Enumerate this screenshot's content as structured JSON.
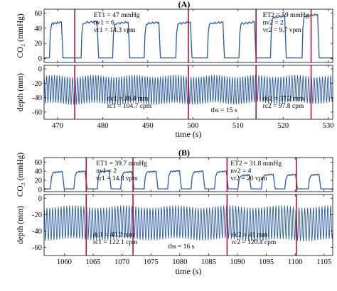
{
  "chart_data": [
    {
      "type": "line",
      "panel_label": "(A)",
      "xlabel": "time (s)",
      "xlim": [
        467,
        531
      ],
      "xticks": [
        "470",
        "480",
        "490",
        "500",
        "510",
        "520",
        "530"
      ],
      "colors": {
        "signal": "#2b5a9e",
        "marker": "#b0123a"
      },
      "markers_x": [
        473.8,
        499.0,
        514.0,
        526.2
      ],
      "top": {
        "ylabel": "CO₂ (mmHg)",
        "ylim": [
          -5,
          65
        ],
        "yticks": [
          "0",
          "20",
          "40",
          "60"
        ],
        "series": [
          {
            "kind": "plateau",
            "start_x": 468.2,
            "stop_x": 531,
            "period": 7.0,
            "widths": [
              3.0,
              3.9,
              3.8,
              3.6,
              3.6,
              3.8,
              3.8,
              3.5,
              3.8,
              2.9
            ],
            "levels": [
              47,
              48,
              47,
              47,
              47,
              47,
              47,
              55,
              57,
              61
            ]
          }
        ],
        "annotations": [
          {
            "x": 478,
            "lines": [
              "ET1 = 47 mmHg",
              "nv1 = 6",
              "vr1 = 14.3 vpm"
            ]
          },
          {
            "x": 515.5,
            "lines": [
              "ET2 = 59 mmHg",
              "nv2 = 2",
              "vr2 = 9.7 vpm"
            ]
          }
        ]
      },
      "bottom": {
        "ylabel": "depth (mm)",
        "ylim": [
          -70,
          5
        ],
        "yticks": [
          "-60",
          "-40",
          "-20",
          "0"
        ],
        "series": [
          {
            "kind": "oscillation",
            "segments": [
              {
                "start": 467,
                "end": 499.0,
                "rate_cpm": 104.7,
                "amplitude": 38.4
              },
              {
                "start": 499.0,
                "end": 514.0,
                "rate_cpm": 104.7,
                "amplitude": 38.0
              },
              {
                "start": 514.0,
                "end": 531,
                "rate_cpm": 97.8,
                "amplitude": 37.2
              }
            ]
          }
        ],
        "annotations": [
          {
            "x": 481,
            "lines": [
              "dc1 = 38.4 mm",
              "rc1 = 104.7 cpm"
            ]
          },
          {
            "x": 504,
            "lines": [
              "tbs = 15 s"
            ]
          },
          {
            "x": 515.5,
            "lines": [
              "dc2 = 37.2 mm",
              "rc2 = 97.8 cpm"
            ]
          }
        ]
      }
    },
    {
      "type": "line",
      "panel_label": "(B)",
      "xlabel": "time (s)",
      "xlim": [
        1056.5,
        1106.5
      ],
      "xticks": [
        "1060",
        "1065",
        "1070",
        "1075",
        "1080",
        "1085",
        "1090",
        "1095",
        "1100",
        "1105"
      ],
      "colors": {
        "signal": "#2b5a9e",
        "marker": "#b0123a"
      },
      "markers_x": [
        1063.8,
        1071.9,
        1088.2,
        1100.2
      ],
      "top": {
        "ylabel": "CO₂ (mmHg)",
        "ylim": [
          -5,
          70
        ],
        "yticks": [
          "0",
          "20",
          "40",
          "60"
        ],
        "series": [
          {
            "kind": "plateau",
            "start_x": 1057.6,
            "stop_x": 1106.5,
            "period": 4.06,
            "widths": [
              2.4,
              2.3,
              2.4,
              2.3,
              2.4,
              2.4,
              2.4,
              2.4,
              2.3,
              2.4,
              2.2,
              2.2
            ],
            "levels": [
              38,
              39,
              40,
              38,
              39,
              40,
              39,
              39,
              31,
              32,
              32,
              32
            ]
          }
        ],
        "annotations": [
          {
            "x": 1065.5,
            "lines": [
              "ET1 = 39.7 mmHg",
              "nv1 = 2",
              "vr1 = 14.8 vpm"
            ]
          },
          {
            "x": 1088.8,
            "lines": [
              "ET2 = 31.8 mmHg",
              "nv2 = 4",
              "vr2 = 20 vpm"
            ]
          }
        ]
      },
      "bottom": {
        "ylabel": "depth (mm)",
        "ylim": [
          -70,
          5
        ],
        "yticks": [
          "-60",
          "-40",
          "-20",
          "0"
        ],
        "series": [
          {
            "kind": "oscillation",
            "segments": [
              {
                "start": 1056.5,
                "end": 1071.9,
                "rate_cpm": 122.1,
                "amplitude": 40.2
              },
              {
                "start": 1071.9,
                "end": 1088.2,
                "rate_cpm": 122.1,
                "amplitude": 40.0
              },
              {
                "start": 1088.2,
                "end": 1106.5,
                "rate_cpm": 120.4,
                "amplitude": 41
              }
            ]
          }
        ],
        "annotations": [
          {
            "x": 1065,
            "lines": [
              "dc1 = 40.2 mm",
              "rc1 = 122.1 cpm"
            ]
          },
          {
            "x": 1078,
            "lines": [
              "tbs = 16 s"
            ]
          },
          {
            "x": 1089,
            "lines": [
              "dc2 = 41 mm",
              "rc2 = 120.4 cpm"
            ]
          }
        ]
      }
    }
  ]
}
